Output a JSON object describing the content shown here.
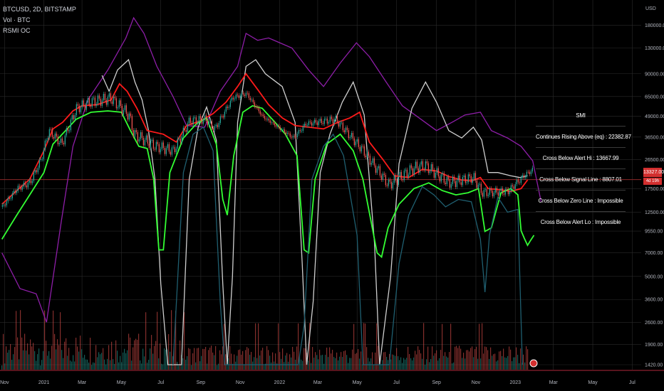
{
  "legend": {
    "symbol": "BTCUSD, 2D, BITSTAMP",
    "volume": "Vol · BTC",
    "indicator": "RSMI OC"
  },
  "smi_table": {
    "title": "SMI",
    "rows": [
      "Continues Rising Above (eq) : 22382.87",
      "Cross Below Alert Hi : 13667.99",
      "Cross Below Signal Line : 8807.01",
      "Cross Below Zero Line : Impossible",
      "Cross Below Alert Lo : Impossible"
    ]
  },
  "price_tag": {
    "value": "13327.00",
    "sub": "4d 19h"
  },
  "colors": {
    "background": "#000000",
    "grid": "#2a2a2a",
    "candle_up": "#26a69a",
    "candle_down": "#ef5350",
    "red_line": "#ff1a1a",
    "green_line": "#33ff33",
    "white_line": "#cfcfcf",
    "purple_line": "#8e1ea8",
    "teal_line": "#1f5f70",
    "hline": "#8b2a2a"
  },
  "chart_data": {
    "type": "line",
    "title": "",
    "y_axis": {
      "unit": "USD",
      "scale": "log",
      "ticks": [
        "180000.00",
        "130000.00",
        "90000.00",
        "65000.00",
        "49000.00",
        "36500.00",
        "26500.00",
        "17500.00",
        "12500.00",
        "9550.00",
        "7000.00",
        "5000.00",
        "3600.00",
        "2600.00",
        "1900.00",
        "1420.00"
      ]
    },
    "x_axis": {
      "ticks": [
        "Nov",
        "2021",
        "Mar",
        "May",
        "Jul",
        "Sep",
        "Nov",
        "2022",
        "Mar",
        "May",
        "Jul",
        "Sep",
        "Nov",
        "2023",
        "Mar",
        "May",
        "Jul"
      ]
    },
    "horizontal_line": 19900,
    "price": [
      [
        "2020-10-28",
        13500
      ],
      [
        "2020-11-20",
        17500
      ],
      [
        "2020-12-10",
        19000
      ],
      [
        "2020-12-27",
        26500
      ],
      [
        "2021-01-08",
        40000
      ],
      [
        "2021-01-28",
        33000
      ],
      [
        "2021-02-20",
        55000
      ],
      [
        "2021-03-13",
        60000
      ],
      [
        "2021-04-14",
        63500
      ],
      [
        "2021-05-12",
        50000
      ],
      [
        "2021-05-20",
        38000
      ],
      [
        "2021-06-22",
        32000
      ],
      [
        "2021-07-20",
        30000
      ],
      [
        "2021-08-14",
        46000
      ],
      [
        "2021-09-07",
        47000
      ],
      [
        "2021-09-22",
        41000
      ],
      [
        "2021-10-20",
        64000
      ],
      [
        "2021-11-10",
        68000
      ],
      [
        "2021-12-05",
        49000
      ],
      [
        "2022-01-22",
        36000
      ],
      [
        "2022-02-10",
        44000
      ],
      [
        "2022-03-28",
        47000
      ],
      [
        "2022-05-10",
        30000
      ],
      [
        "2022-06-18",
        18500
      ],
      [
        "2022-07-28",
        23500
      ],
      [
        "2022-08-14",
        24300
      ],
      [
        "2022-09-20",
        19000
      ],
      [
        "2022-10-28",
        20500
      ],
      [
        "2022-11-10",
        16500
      ],
      [
        "2022-12-20",
        16800
      ],
      [
        "2023-01-14",
        21000
      ],
      [
        "2023-01-28",
        23000
      ]
    ],
    "series": [
      {
        "color": "#8e1ea8",
        "values": [
          [
            "2020-10-28",
            7000
          ],
          [
            "2020-11-25",
            4200
          ],
          [
            "2020-12-20",
            3900
          ],
          [
            "2021-01-05",
            2600
          ],
          [
            "2021-01-28",
            11000
          ],
          [
            "2021-02-15",
            32000
          ],
          [
            "2021-03-10",
            62000
          ],
          [
            "2021-04-10",
            95000
          ],
          [
            "2021-05-08",
            150000
          ],
          [
            "2021-05-20",
            200000
          ],
          [
            "2021-06-05",
            160000
          ],
          [
            "2021-06-25",
            100000
          ],
          [
            "2021-07-20",
            65000
          ],
          [
            "2021-08-10",
            43000
          ],
          [
            "2021-09-07",
            42000
          ],
          [
            "2021-10-01",
            70000
          ],
          [
            "2021-10-28",
            100000
          ],
          [
            "2021-11-10",
            160000
          ],
          [
            "2021-11-28",
            145000
          ],
          [
            "2021-12-15",
            150000
          ],
          [
            "2022-01-20",
            130000
          ],
          [
            "2022-02-15",
            95000
          ],
          [
            "2022-03-10",
            75000
          ],
          [
            "2022-04-05",
            105000
          ],
          [
            "2022-04-30",
            140000
          ],
          [
            "2022-05-20",
            115000
          ],
          [
            "2022-06-15",
            80000
          ],
          [
            "2022-07-10",
            57000
          ],
          [
            "2022-08-05",
            48000
          ],
          [
            "2022-09-01",
            40000
          ],
          [
            "2022-09-25",
            45000
          ],
          [
            "2022-10-15",
            50000
          ],
          [
            "2022-11-08",
            52000
          ],
          [
            "2022-11-25",
            40000
          ],
          [
            "2022-12-20",
            36000
          ],
          [
            "2023-01-10",
            32000
          ],
          [
            "2023-01-28",
            26000
          ],
          [
            "2023-02-10",
            14500
          ]
        ]
      },
      {
        "color": "#cfcfcf",
        "values": [
          [
            "2021-04-01",
            88000
          ],
          [
            "2021-04-12",
            70000
          ],
          [
            "2021-04-25",
            95000
          ],
          [
            "2021-05-12",
            110000
          ],
          [
            "2021-05-22",
            80000
          ],
          [
            "2021-06-02",
            62000
          ],
          [
            "2021-06-12",
            40000
          ],
          [
            "2021-06-22",
            20000
          ],
          [
            "2021-07-01",
            4500
          ],
          [
            "2021-07-12",
            1420
          ],
          [
            "2021-08-02",
            1420
          ],
          [
            "2021-08-14",
            20000
          ],
          [
            "2021-08-28",
            42000
          ],
          [
            "2021-09-10",
            56000
          ],
          [
            "2021-09-25",
            35000
          ],
          [
            "2021-10-05",
            4500
          ],
          [
            "2021-10-12",
            1420
          ],
          [
            "2021-10-20",
            5000
          ],
          [
            "2021-10-28",
            45000
          ],
          [
            "2021-11-10",
            100000
          ],
          [
            "2021-11-25",
            110000
          ],
          [
            "2021-12-10",
            90000
          ],
          [
            "2022-01-05",
            75000
          ],
          [
            "2022-01-25",
            45000
          ],
          [
            "2022-02-05",
            6000
          ],
          [
            "2022-02-12",
            1420
          ],
          [
            "2022-02-22",
            3500
          ],
          [
            "2022-03-05",
            22000
          ],
          [
            "2022-03-20",
            38000
          ],
          [
            "2022-04-08",
            60000
          ],
          [
            "2022-04-25",
            80000
          ],
          [
            "2022-05-12",
            50000
          ],
          [
            "2022-05-28",
            8000
          ],
          [
            "2022-06-05",
            1420
          ],
          [
            "2022-06-22",
            5000
          ],
          [
            "2022-07-05",
            25000
          ],
          [
            "2022-07-25",
            55000
          ],
          [
            "2022-08-15",
            80000
          ],
          [
            "2022-09-01",
            60000
          ],
          [
            "2022-09-20",
            40000
          ],
          [
            "2022-10-10",
            36000
          ],
          [
            "2022-10-28",
            42000
          ],
          [
            "2022-11-10",
            35000
          ],
          [
            "2022-11-20",
            22000
          ],
          [
            "2022-12-05",
            22000
          ],
          [
            "2022-12-25",
            21000
          ],
          [
            "2023-01-08",
            20500
          ],
          [
            "2023-01-20",
            21000
          ]
        ]
      },
      {
        "color": "#ff1a1a",
        "values": [
          [
            "2020-10-28",
            14000
          ],
          [
            "2020-11-20",
            17000
          ],
          [
            "2020-12-10",
            20000
          ],
          [
            "2021-01-01",
            30000
          ],
          [
            "2021-01-15",
            41000
          ],
          [
            "2021-01-30",
            45000
          ],
          [
            "2021-02-15",
            53000
          ],
          [
            "2021-03-01",
            57000
          ],
          [
            "2021-03-25",
            58000
          ],
          [
            "2021-04-15",
            62000
          ],
          [
            "2021-04-28",
            78000
          ],
          [
            "2021-05-10",
            70000
          ],
          [
            "2021-05-25",
            55000
          ],
          [
            "2021-06-10",
            40000
          ],
          [
            "2021-07-05",
            38000
          ],
          [
            "2021-07-25",
            34000
          ],
          [
            "2021-08-10",
            43000
          ],
          [
            "2021-09-01",
            46000
          ],
          [
            "2021-09-20",
            51000
          ],
          [
            "2021-10-10",
            60000
          ],
          [
            "2021-10-28",
            75000
          ],
          [
            "2021-11-10",
            90000
          ],
          [
            "2021-11-28",
            72000
          ],
          [
            "2021-12-15",
            58000
          ],
          [
            "2022-01-05",
            48000
          ],
          [
            "2022-01-25",
            43000
          ],
          [
            "2022-02-15",
            42000
          ],
          [
            "2022-03-10",
            41000
          ],
          [
            "2022-04-01",
            45000
          ],
          [
            "2022-04-20",
            48000
          ],
          [
            "2022-05-05",
            52000
          ],
          [
            "2022-05-20",
            34000
          ],
          [
            "2022-06-10",
            26500
          ],
          [
            "2022-06-28",
            21000
          ],
          [
            "2022-07-20",
            20500
          ],
          [
            "2022-08-10",
            23000
          ],
          [
            "2022-09-01",
            22500
          ],
          [
            "2022-09-20",
            20800
          ],
          [
            "2022-10-10",
            19800
          ],
          [
            "2022-10-25",
            19500
          ],
          [
            "2022-11-08",
            20500
          ],
          [
            "2022-11-20",
            17500
          ],
          [
            "2022-12-10",
            17200
          ],
          [
            "2022-12-25",
            16800
          ],
          [
            "2023-01-10",
            17500
          ],
          [
            "2023-01-20",
            19800
          ]
        ]
      },
      {
        "color": "#33ff33",
        "values": [
          [
            "2020-10-28",
            8500
          ],
          [
            "2020-11-20",
            12000
          ],
          [
            "2020-12-10",
            16000
          ],
          [
            "2021-01-01",
            22000
          ],
          [
            "2021-01-15",
            33000
          ],
          [
            "2021-02-01",
            39000
          ],
          [
            "2021-02-20",
            47000
          ],
          [
            "2021-03-15",
            52000
          ],
          [
            "2021-04-10",
            53000
          ],
          [
            "2021-05-01",
            52000
          ],
          [
            "2021-05-15",
            40000
          ],
          [
            "2021-05-28",
            32000
          ],
          [
            "2021-06-10",
            31000
          ],
          [
            "2021-06-20",
            20000
          ],
          [
            "2021-06-28",
            7300
          ],
          [
            "2021-07-05",
            7300
          ],
          [
            "2021-07-15",
            22000
          ],
          [
            "2021-08-05",
            36000
          ],
          [
            "2021-08-25",
            44000
          ],
          [
            "2021-09-10",
            48000
          ],
          [
            "2021-09-25",
            33000
          ],
          [
            "2021-10-05",
            15000
          ],
          [
            "2021-10-12",
            12000
          ],
          [
            "2021-10-22",
            28000
          ],
          [
            "2021-11-05",
            52000
          ],
          [
            "2021-11-20",
            57000
          ],
          [
            "2021-12-05",
            55000
          ],
          [
            "2021-12-25",
            45000
          ],
          [
            "2022-01-10",
            38000
          ],
          [
            "2022-01-28",
            28000
          ],
          [
            "2022-02-08",
            7300
          ],
          [
            "2022-02-15",
            7000
          ],
          [
            "2022-02-25",
            20000
          ],
          [
            "2022-03-15",
            33000
          ],
          [
            "2022-04-05",
            38000
          ],
          [
            "2022-04-25",
            30000
          ],
          [
            "2022-05-10",
            20000
          ],
          [
            "2022-06-01",
            7000
          ],
          [
            "2022-06-08",
            6600
          ],
          [
            "2022-06-18",
            10000
          ],
          [
            "2022-07-05",
            14000
          ],
          [
            "2022-07-28",
            17500
          ],
          [
            "2022-08-20",
            19000
          ],
          [
            "2022-09-10",
            17000
          ],
          [
            "2022-10-01",
            16000
          ],
          [
            "2022-10-20",
            16500
          ],
          [
            "2022-11-05",
            17500
          ],
          [
            "2022-11-15",
            9500
          ],
          [
            "2022-11-25",
            10000
          ],
          [
            "2022-12-10",
            16500
          ],
          [
            "2022-12-25",
            17500
          ],
          [
            "2023-01-05",
            16000
          ],
          [
            "2023-01-10",
            9600
          ],
          [
            "2023-01-15",
            8600
          ],
          [
            "2023-01-20",
            7800
          ],
          [
            "2023-01-25",
            8400
          ],
          [
            "2023-01-30",
            9000
          ]
        ]
      },
      {
        "color": "#1f5f70",
        "values": [
          [
            "2021-07-20",
            1420
          ],
          [
            "2021-08-05",
            22000
          ],
          [
            "2021-08-20",
            38000
          ],
          [
            "2021-09-05",
            42000
          ],
          [
            "2021-09-20",
            30000
          ],
          [
            "2021-10-01",
            3500
          ],
          [
            "2021-10-08",
            1420
          ],
          [
            "2022-01-30",
            1420
          ],
          [
            "2022-02-08",
            2500
          ],
          [
            "2022-02-20",
            20000
          ],
          [
            "2022-03-10",
            32000
          ],
          [
            "2022-03-25",
            38000
          ],
          [
            "2022-04-10",
            28000
          ],
          [
            "2022-05-01",
            9000
          ],
          [
            "2022-05-10",
            1420
          ],
          [
            "2022-06-20",
            1420
          ],
          [
            "2022-07-05",
            6000
          ],
          [
            "2022-07-20",
            12000
          ],
          [
            "2022-08-10",
            18000
          ],
          [
            "2022-08-28",
            16000
          ],
          [
            "2022-09-15",
            13500
          ],
          [
            "2022-10-05",
            15000
          ],
          [
            "2022-10-25",
            14500
          ],
          [
            "2022-11-08",
            8500
          ],
          [
            "2022-11-15",
            4000
          ],
          [
            "2022-11-22",
            9000
          ],
          [
            "2022-12-05",
            15500
          ],
          [
            "2022-12-20",
            12500
          ],
          [
            "2023-01-05",
            13000
          ],
          [
            "2023-01-12",
            1420
          ]
        ]
      }
    ],
    "volume_note": "volume bars along bottom"
  }
}
